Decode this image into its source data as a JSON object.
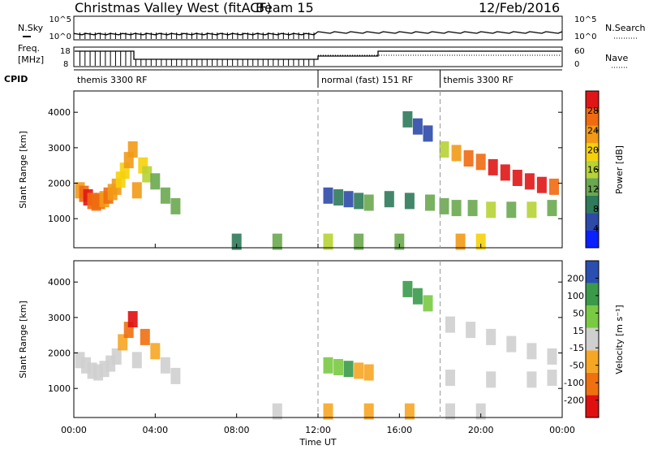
{
  "header": {
    "title": "Christmas Valley West (fitACF)",
    "beam": "Beam 15",
    "date": "12/Feb/2016"
  },
  "strips": {
    "nsky": {
      "label": "N.Sky",
      "ticks": [
        "10^5",
        "10^0"
      ]
    },
    "nsearch": {
      "label": "N.Search",
      "ticks": [
        "10^5",
        "10^0"
      ]
    },
    "freq": {
      "label": "Freq.",
      "unit": "[MHz]",
      "ticks": [
        "18",
        "8"
      ]
    },
    "nave": {
      "label": "Nave",
      "ticks": [
        "60",
        "0"
      ]
    },
    "cpid": {
      "label": "CPID",
      "segments": [
        {
          "name": "themis 3300 RF",
          "start": 0,
          "end": 12
        },
        {
          "name": "normal (fast) 151 RF",
          "start": 12,
          "end": 18
        },
        {
          "name": "themis 3300 RF",
          "start": 18,
          "end": 24
        }
      ]
    }
  },
  "colors": {
    "power": [
      "#0a20ff",
      "#2d4aa8",
      "#2f7a5a",
      "#6aa84f",
      "#b7d334",
      "#f6d10a",
      "#f29a16",
      "#ef6a10",
      "#e01616"
    ],
    "velocity": [
      "#e01010",
      "#f07010",
      "#f6a623",
      "#cfcfcf",
      "#7ac943",
      "#3a9a4a",
      "#2a4fb0"
    ]
  },
  "chart_data": [
    {
      "type": "heatmap",
      "name": "Power",
      "xlabel": "Time UT",
      "ylabel": "Slant Range [km]",
      "x_range_hours": [
        0,
        24
      ],
      "ylim": [
        180,
        4600
      ],
      "x_ticks": [
        "00:00",
        "04:00",
        "08:00",
        "12:00",
        "16:00",
        "20:00",
        "00:00"
      ],
      "y_ticks": [
        1000,
        2000,
        3000,
        4000
      ],
      "colorbar": {
        "label": "Power [dB]",
        "ticks": [
          4,
          8,
          12,
          16,
          20,
          24,
          28
        ],
        "range": [
          0,
          30
        ]
      },
      "cells": [
        [
          0.3,
          1800,
          22
        ],
        [
          0.5,
          1700,
          26
        ],
        [
          0.7,
          1600,
          28
        ],
        [
          0.9,
          1500,
          26
        ],
        [
          1.1,
          1450,
          24
        ],
        [
          1.3,
          1500,
          26
        ],
        [
          1.5,
          1550,
          22
        ],
        [
          1.7,
          1650,
          24
        ],
        [
          1.9,
          1750,
          22
        ],
        [
          2.1,
          1900,
          20
        ],
        [
          2.3,
          2100,
          18
        ],
        [
          2.5,
          2350,
          18
        ],
        [
          2.7,
          2650,
          20
        ],
        [
          2.9,
          2950,
          22
        ],
        [
          3.1,
          1800,
          20
        ],
        [
          3.4,
          2500,
          18
        ],
        [
          3.6,
          2250,
          14
        ],
        [
          4.0,
          2050,
          12
        ],
        [
          4.5,
          1650,
          10
        ],
        [
          5.0,
          1350,
          10
        ],
        [
          12.5,
          1650,
          6
        ],
        [
          13.0,
          1600,
          8
        ],
        [
          13.5,
          1550,
          6
        ],
        [
          14.0,
          1500,
          8
        ],
        [
          14.5,
          1450,
          10
        ],
        [
          15.5,
          1550,
          8
        ],
        [
          16.5,
          1500,
          8
        ],
        [
          17.5,
          1450,
          10
        ],
        [
          18.2,
          1350,
          10
        ],
        [
          18.8,
          1300,
          12
        ],
        [
          19.6,
          1300,
          12
        ],
        [
          20.5,
          1250,
          14
        ],
        [
          21.5,
          1250,
          12
        ],
        [
          22.5,
          1250,
          14
        ],
        [
          23.5,
          1300,
          12
        ],
        [
          18.2,
          2950,
          16
        ],
        [
          18.8,
          2850,
          20
        ],
        [
          19.4,
          2700,
          24
        ],
        [
          20.0,
          2600,
          26
        ],
        [
          20.6,
          2450,
          28
        ],
        [
          21.2,
          2300,
          28
        ],
        [
          21.8,
          2150,
          28
        ],
        [
          22.4,
          2050,
          28
        ],
        [
          23.0,
          1950,
          28
        ],
        [
          23.6,
          1900,
          26
        ],
        [
          16.4,
          3800,
          8
        ],
        [
          16.9,
          3600,
          6
        ],
        [
          17.4,
          3400,
          6
        ],
        [
          8.0,
          350,
          8
        ],
        [
          10.0,
          350,
          10
        ],
        [
          12.5,
          350,
          14
        ],
        [
          14.0,
          350,
          10
        ],
        [
          16.0,
          350,
          12
        ],
        [
          19.0,
          350,
          20
        ],
        [
          20.0,
          350,
          18
        ]
      ]
    },
    {
      "type": "heatmap",
      "name": "Velocity",
      "xlabel": "Time UT",
      "ylabel": "Slant Range [km]",
      "x_range_hours": [
        0,
        24
      ],
      "ylim": [
        180,
        4600
      ],
      "x_ticks": [
        "00:00",
        "04:00",
        "08:00",
        "12:00",
        "16:00",
        "20:00",
        "00:00"
      ],
      "y_ticks": [
        1000,
        2000,
        3000,
        4000
      ],
      "colorbar": {
        "label": "Velocity [m s⁻¹]",
        "ticks": [
          200,
          100,
          50,
          15,
          -15,
          -50,
          -100,
          -200
        ],
        "range": [
          -250,
          250
        ]
      },
      "cells": [
        [
          0.3,
          1800,
          0
        ],
        [
          0.6,
          1650,
          5
        ],
        [
          0.9,
          1500,
          0
        ],
        [
          1.2,
          1450,
          -5
        ],
        [
          1.5,
          1550,
          0
        ],
        [
          1.8,
          1700,
          5
        ],
        [
          2.1,
          1900,
          0
        ],
        [
          2.4,
          2300,
          -80
        ],
        [
          2.7,
          2650,
          -150
        ],
        [
          2.9,
          2950,
          -200
        ],
        [
          3.1,
          1800,
          0
        ],
        [
          3.5,
          2450,
          -120
        ],
        [
          4.0,
          2050,
          -60
        ],
        [
          4.5,
          1650,
          -30
        ],
        [
          5.0,
          1350,
          -30
        ],
        [
          12.5,
          1650,
          80
        ],
        [
          13.0,
          1600,
          40
        ],
        [
          13.5,
          1550,
          120
        ],
        [
          14.0,
          1500,
          -60
        ],
        [
          14.5,
          1450,
          -40
        ],
        [
          16.4,
          3800,
          150
        ],
        [
          16.9,
          3600,
          150
        ],
        [
          17.4,
          3400,
          60
        ],
        [
          18.5,
          2800,
          0
        ],
        [
          19.5,
          2650,
          0
        ],
        [
          20.5,
          2450,
          0
        ],
        [
          21.5,
          2250,
          0
        ],
        [
          22.5,
          2050,
          0
        ],
        [
          23.5,
          1900,
          0
        ],
        [
          18.5,
          1300,
          0
        ],
        [
          20.5,
          1250,
          0
        ],
        [
          22.5,
          1250,
          0
        ],
        [
          23.5,
          1300,
          0
        ],
        [
          10.0,
          350,
          20
        ],
        [
          12.5,
          350,
          -60
        ],
        [
          14.5,
          350,
          -60
        ],
        [
          16.5,
          350,
          -40
        ],
        [
          18.5,
          350,
          10
        ],
        [
          20.0,
          350,
          20
        ]
      ]
    }
  ]
}
